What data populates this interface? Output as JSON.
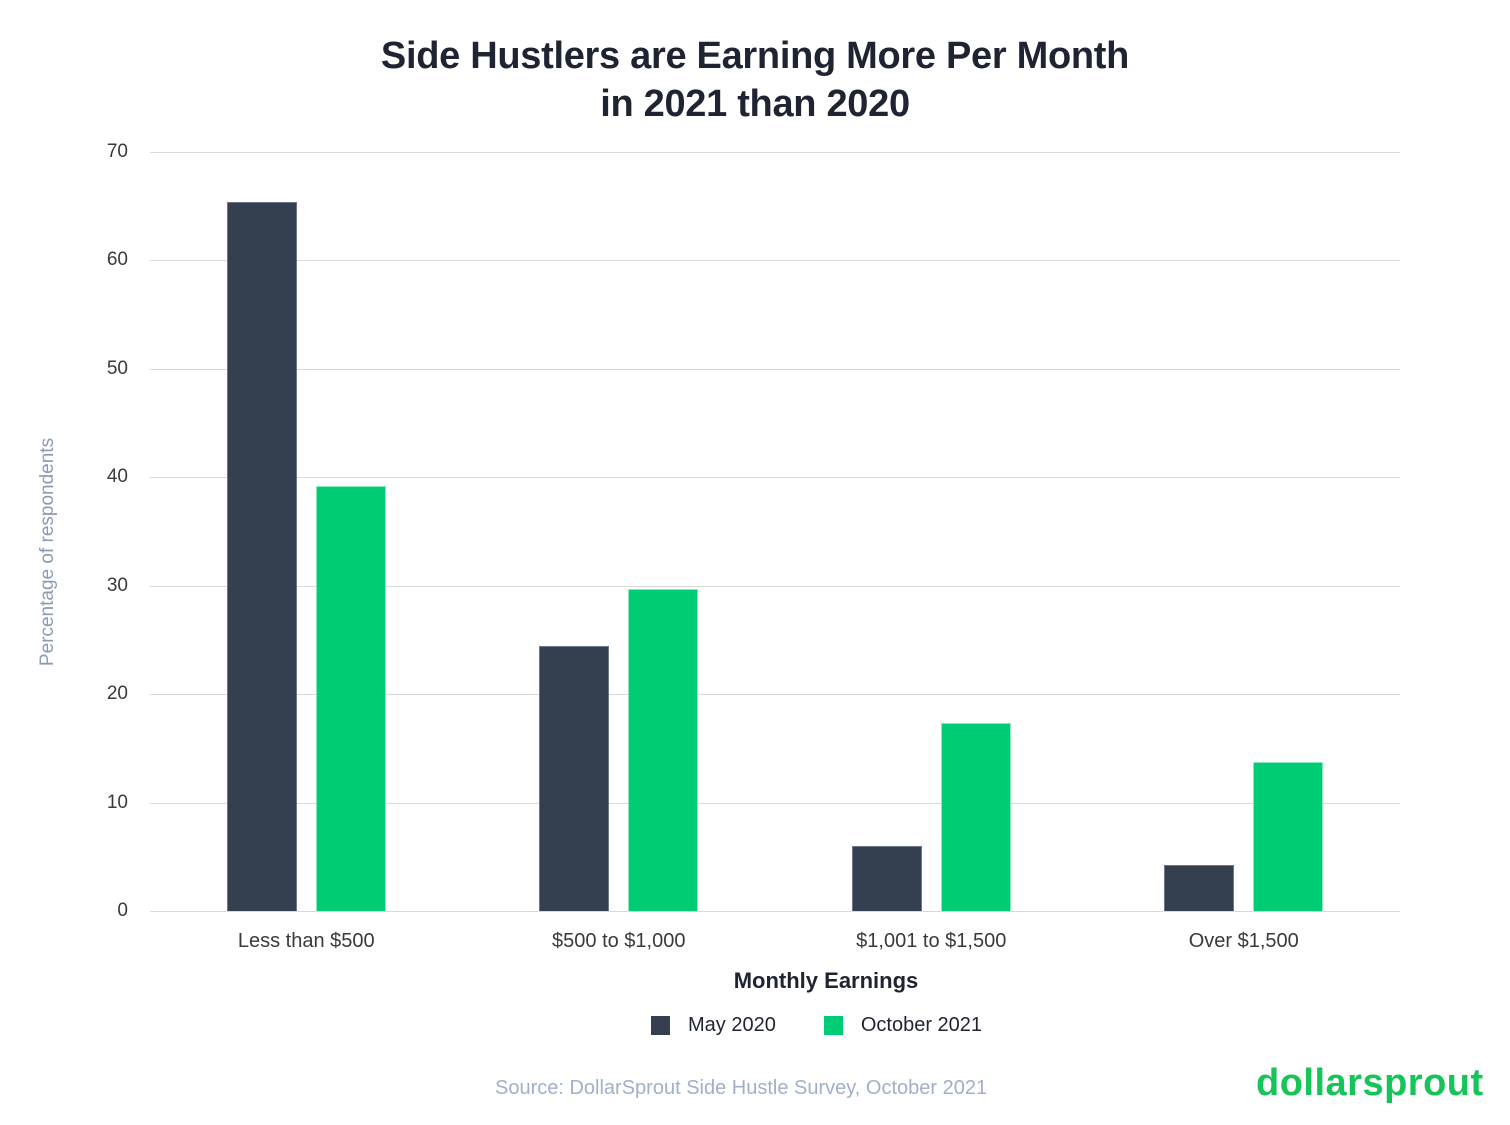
{
  "title_line1": "Side Hustlers are Earning More Per Month",
  "title_line2": "in 2021 than 2020",
  "yaxis_label": "Percentage of respondents",
  "xaxis_label": "Monthly Earnings",
  "source": "Source: DollarSprout Side Hustle Survey, October 2021",
  "logo": "dollarsprout",
  "colors": {
    "may_2020": "#343f50",
    "october_2021": "#00cc76",
    "brand": "#17c45a"
  },
  "chart_data": {
    "type": "bar",
    "title": "Side Hustlers are Earning More Per Month in 2021 than 2020",
    "xlabel": "Monthly Earnings",
    "ylabel": "Percentage of respondents",
    "categories": [
      "Less than $500",
      "$500 to $1,000",
      "$1,001 to $1,500",
      "Over $1,500"
    ],
    "series": [
      {
        "name": "May 2020",
        "color": "#343f50",
        "values": [
          65.4,
          24.4,
          6.0,
          4.2
        ]
      },
      {
        "name": "October 2021",
        "color": "#00cc76",
        "values": [
          39.2,
          29.7,
          17.3,
          13.7
        ]
      }
    ],
    "ylim": [
      0,
      70
    ],
    "yticks": [
      0,
      10,
      20,
      30,
      40,
      50,
      60,
      70
    ],
    "grid": true,
    "legend_position": "bottom"
  }
}
